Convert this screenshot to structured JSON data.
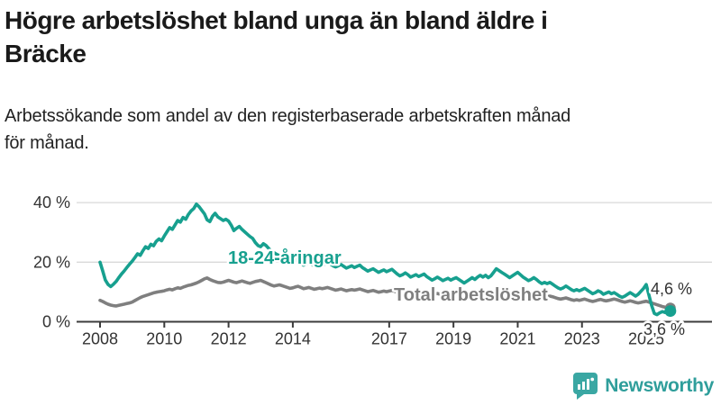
{
  "header": {
    "title": "Högre arbetslöshet bland unga än bland äldre i Bräcke",
    "title_lines": [
      "Högre arbetslöshet bland unga än bland äldre i",
      "Bräcke"
    ],
    "subtitle_lines": [
      "Arbetssökande som andel av den registerbaserade arbetskraften månad",
      "för månad."
    ]
  },
  "footer": {
    "brand": "Newsworthy"
  },
  "colors": {
    "youth_line": "#17a08f",
    "total_line": "#7f7f7f",
    "grid": "#d9d9d9",
    "axis": "#3c3c3c",
    "axis_text": "#333333",
    "brand_teal": "#3aa7a3"
  },
  "chart_data": {
    "type": "line",
    "title": "Högre arbetslöshet bland unga än bland äldre i Bräcke",
    "subtitle": "Arbetssökande som andel av den registerbaserade arbetskraften månad för månad.",
    "xlabel": "",
    "ylabel": "",
    "ylim": [
      0,
      44.5
    ],
    "xlim": [
      2007.27,
      2027.05
    ],
    "grid": "horizontal-only",
    "legend": "inline-labels",
    "yticks": [
      {
        "value": 0,
        "label": "0 %"
      },
      {
        "value": 20,
        "label": "20 %"
      },
      {
        "value": 40,
        "label": "40 %"
      }
    ],
    "xticks": [
      2008,
      2010,
      2012,
      2014,
      2017,
      2019,
      2021,
      2023,
      2025
    ],
    "x_start": 2008.0,
    "x_step": 0.0833333,
    "x_unit": "month",
    "series": [
      {
        "name": "Total arbetslöshet",
        "color": "#7f7f7f",
        "end_label": "4,6 %",
        "end_value": 4.6,
        "values": [
          7.2,
          6.8,
          6.3,
          5.9,
          5.6,
          5.4,
          5.3,
          5.5,
          5.7,
          5.9,
          6.1,
          6.3,
          6.6,
          7.1,
          7.6,
          8.1,
          8.5,
          8.8,
          9.1,
          9.4,
          9.7,
          9.9,
          10.1,
          10.2,
          10.4,
          10.7,
          10.9,
          10.7,
          11.1,
          11.4,
          11.2,
          11.6,
          11.9,
          12.2,
          12.4,
          12.7,
          13.0,
          13.4,
          13.9,
          14.4,
          14.7,
          14.2,
          13.8,
          13.5,
          13.2,
          13.1,
          13.3,
          13.6,
          13.9,
          13.6,
          13.3,
          13.1,
          13.4,
          13.7,
          13.4,
          13.1,
          12.9,
          13.2,
          13.5,
          13.7,
          13.9,
          13.5,
          13.1,
          12.7,
          12.3,
          12.0,
          12.2,
          12.4,
          12.1,
          11.8,
          11.5,
          11.2,
          11.4,
          11.7,
          11.9,
          11.5,
          11.1,
          11.3,
          11.5,
          11.2,
          10.9,
          11.1,
          11.3,
          11.1,
          11.3,
          11.5,
          11.2,
          10.9,
          10.6,
          10.8,
          11.0,
          10.7,
          10.4,
          10.6,
          10.8,
          10.6,
          10.8,
          11.0,
          10.7,
          10.4,
          10.1,
          10.3,
          10.5,
          10.2,
          9.9,
          10.1,
          10.3,
          10.1,
          10.3,
          10.5,
          10.2,
          9.9,
          9.6,
          9.8,
          10.0,
          9.7,
          9.4,
          9.6,
          9.8,
          9.6,
          9.8,
          10.0,
          9.7,
          9.4,
          9.1,
          9.3,
          9.5,
          9.2,
          8.9,
          9.1,
          9.3,
          9.1,
          9.3,
          9.5,
          9.2,
          8.9,
          8.6,
          8.8,
          9.0,
          9.2,
          8.9,
          8.7,
          8.9,
          9.1,
          9.3,
          9.1,
          9.4,
          10.0,
          10.5,
          10.2,
          9.9,
          9.7,
          9.5,
          9.3,
          9.5,
          9.7,
          9.9,
          9.7,
          9.4,
          9.1,
          8.8,
          9.0,
          9.2,
          8.9,
          8.6,
          8.4,
          8.6,
          8.4,
          8.6,
          8.4,
          8.1,
          7.8,
          7.6,
          7.8,
          8.0,
          7.7,
          7.4,
          7.2,
          7.4,
          7.2,
          7.4,
          7.6,
          7.3,
          7.0,
          6.8,
          7.0,
          7.3,
          7.5,
          7.2,
          7.0,
          7.2,
          7.4,
          7.6,
          7.4,
          7.1,
          6.8,
          6.6,
          6.8,
          7.0,
          6.8,
          6.5,
          6.3,
          6.5,
          6.7,
          6.9,
          6.6,
          6.3,
          6.0,
          5.7,
          5.4,
          5.1,
          4.9,
          4.7,
          4.6
        ]
      },
      {
        "name": "18-24-åringar",
        "color": "#17a08f",
        "end_label": "3,6 %",
        "end_value": 3.6,
        "values": [
          20.0,
          17.0,
          14.0,
          12.5,
          11.8,
          12.6,
          13.5,
          14.8,
          16.0,
          17.0,
          18.2,
          19.3,
          20.3,
          21.5,
          22.8,
          22.3,
          23.8,
          25.2,
          24.6,
          26.0,
          25.5,
          27.0,
          27.8,
          27.2,
          28.8,
          30.2,
          31.6,
          31.0,
          32.5,
          34.0,
          33.4,
          35.0,
          34.4,
          36.0,
          37.2,
          38.0,
          39.5,
          38.6,
          37.4,
          36.2,
          34.2,
          33.6,
          35.4,
          36.4,
          35.2,
          34.6,
          34.0,
          34.4,
          33.8,
          32.4,
          30.6,
          31.4,
          32.0,
          31.0,
          30.2,
          29.4,
          28.6,
          28.0,
          26.6,
          25.6,
          25.2,
          26.2,
          25.6,
          24.6,
          23.6,
          23.2,
          22.6,
          22.2,
          21.6,
          21.2,
          20.4,
          19.8,
          20.2,
          21.0,
          20.4,
          19.6,
          19.0,
          19.4,
          19.8,
          19.2,
          18.8,
          19.2,
          19.6,
          19.0,
          19.4,
          20.0,
          19.4,
          18.8,
          18.4,
          18.8,
          19.2,
          18.6,
          18.0,
          18.4,
          18.8,
          18.2,
          18.6,
          19.0,
          18.2,
          17.6,
          17.0,
          17.4,
          17.8,
          17.2,
          16.6,
          17.0,
          17.4,
          16.8,
          17.2,
          17.6,
          16.8,
          16.0,
          15.4,
          15.8,
          16.4,
          15.8,
          15.0,
          15.4,
          15.8,
          15.2,
          15.6,
          16.0,
          15.2,
          14.6,
          14.0,
          14.4,
          15.0,
          14.4,
          13.8,
          14.2,
          14.6,
          14.0,
          14.4,
          14.8,
          14.2,
          13.6,
          13.0,
          13.6,
          14.2,
          14.8,
          14.2,
          15.0,
          15.6,
          15.0,
          15.6,
          14.8,
          15.4,
          16.6,
          17.8,
          17.2,
          16.6,
          16.0,
          15.4,
          14.8,
          15.4,
          16.0,
          16.6,
          15.8,
          15.0,
          14.4,
          13.8,
          14.2,
          14.8,
          14.2,
          13.4,
          12.8,
          13.2,
          12.8,
          13.2,
          12.6,
          12.0,
          11.4,
          11.0,
          11.4,
          12.0,
          11.4,
          10.8,
          10.4,
          10.8,
          10.4,
          10.8,
          11.2,
          10.6,
          10.0,
          9.4,
          9.8,
          10.4,
          10.0,
          9.2,
          9.6,
          10.0,
          9.4,
          9.8,
          9.2,
          8.6,
          8.2,
          8.6,
          9.2,
          9.8,
          9.2,
          8.6,
          9.2,
          10.2,
          11.2,
          12.5,
          9.0,
          5.5,
          2.8,
          2.4,
          3.0,
          3.4,
          3.1,
          3.4,
          3.6
        ]
      }
    ]
  }
}
